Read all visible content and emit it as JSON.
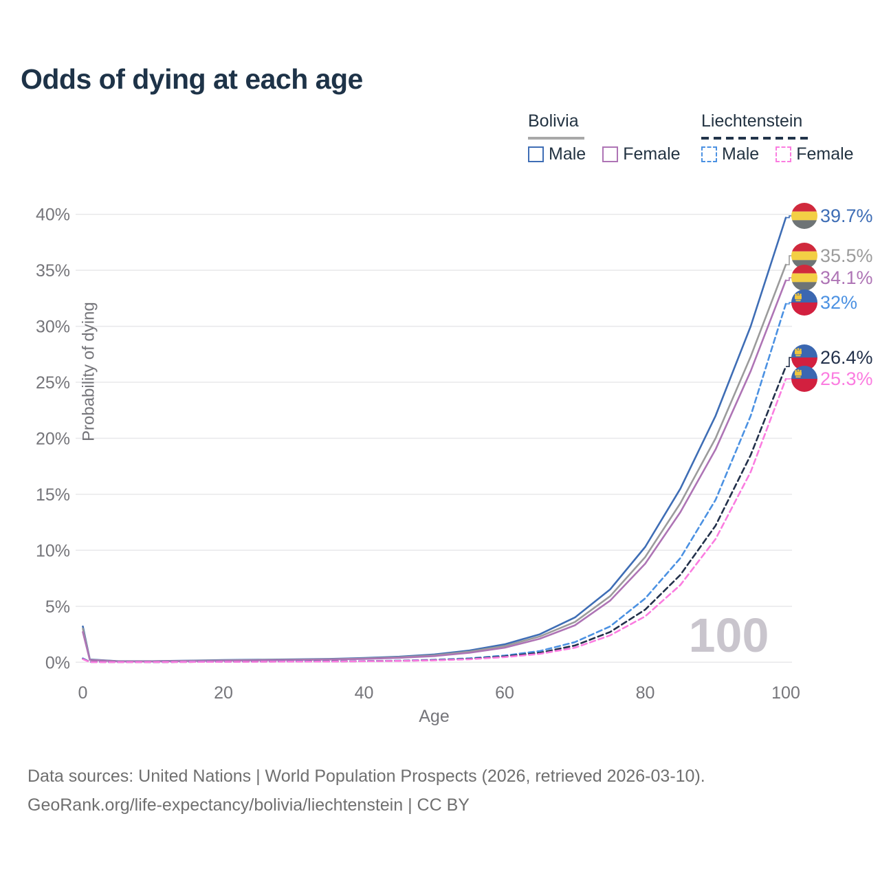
{
  "title": "Odds of dying at each age",
  "legend": {
    "groups": [
      {
        "label": "Bolivia",
        "line_style": "solid",
        "underline_color": "#a8a8a8",
        "items": [
          {
            "label": "Male",
            "color": "#3e6db5"
          },
          {
            "label": "Female",
            "color": "#ae74b5"
          }
        ]
      },
      {
        "label": "Liechtenstein",
        "line_style": "dashed",
        "underline_color": "#22344a",
        "items": [
          {
            "label": "Male",
            "color": "#4b91e2"
          },
          {
            "label": "Female",
            "color": "#fb7ce0"
          }
        ]
      }
    ]
  },
  "watermark": "100",
  "footer": {
    "line1": "Data sources: United Nations | World Population Prospects (2026, retrieved 2026-03-10).",
    "line2": "GeoRank.org/life-expectancy/bolivia/liechtenstein | CC BY"
  },
  "chart_data": {
    "type": "line",
    "title": "Odds of dying at each age",
    "xlabel": "Age",
    "ylabel": "Probability of dying",
    "xlim": [
      0,
      100
    ],
    "ylim": [
      0,
      40
    ],
    "x_ticks": [
      0,
      20,
      40,
      60,
      80,
      100
    ],
    "y_ticks": [
      0,
      5,
      10,
      15,
      20,
      25,
      30,
      35,
      40
    ],
    "y_tick_suffix": "%",
    "grid": "horizontal",
    "x": [
      0,
      1,
      5,
      10,
      15,
      20,
      25,
      30,
      35,
      40,
      45,
      50,
      55,
      60,
      65,
      70,
      75,
      80,
      85,
      90,
      95,
      100
    ],
    "series": [
      {
        "name": "Bolivia Male",
        "color": "#3e6db5",
        "dash": "solid",
        "flag": "bolivia",
        "end_label": "39.7%",
        "values": [
          3.2,
          0.25,
          0.1,
          0.1,
          0.15,
          0.2,
          0.23,
          0.26,
          0.3,
          0.38,
          0.5,
          0.7,
          1.05,
          1.6,
          2.5,
          4.0,
          6.5,
          10.3,
          15.5,
          22.0,
          30.0,
          39.7
        ]
      },
      {
        "name": "Bolivia Both sexes",
        "color": "#9b9b9b",
        "dash": "solid",
        "flag": "bolivia",
        "end_label": "35.5%",
        "values": [
          3.0,
          0.22,
          0.09,
          0.09,
          0.13,
          0.17,
          0.2,
          0.23,
          0.27,
          0.34,
          0.45,
          0.62,
          0.95,
          1.45,
          2.3,
          3.6,
          5.9,
          9.4,
          14.2,
          20.0,
          27.3,
          35.5
        ]
      },
      {
        "name": "Bolivia Female",
        "color": "#ae74b5",
        "dash": "solid",
        "flag": "bolivia",
        "end_label": "34.1%",
        "values": [
          2.7,
          0.2,
          0.08,
          0.08,
          0.11,
          0.14,
          0.17,
          0.2,
          0.24,
          0.3,
          0.4,
          0.55,
          0.85,
          1.3,
          2.1,
          3.3,
          5.5,
          8.8,
          13.4,
          19.0,
          26.0,
          34.1
        ]
      },
      {
        "name": "Liechtenstein Male",
        "color": "#4b91e2",
        "dash": "dashed",
        "flag": "liechtenstein",
        "end_label": "32%",
        "values": [
          0.35,
          0.03,
          0.02,
          0.02,
          0.04,
          0.06,
          0.07,
          0.08,
          0.09,
          0.11,
          0.15,
          0.22,
          0.35,
          0.6,
          1.0,
          1.8,
          3.2,
          5.7,
          9.3,
          14.5,
          22.0,
          32.0
        ]
      },
      {
        "name": "Liechtenstein Both sexes",
        "color": "#22304a",
        "dash": "dashed",
        "flag": "liechtenstein",
        "end_label": "26.4%",
        "values": [
          0.3,
          0.03,
          0.02,
          0.02,
          0.03,
          0.05,
          0.06,
          0.07,
          0.08,
          0.1,
          0.13,
          0.19,
          0.3,
          0.52,
          0.85,
          1.5,
          2.7,
          4.7,
          7.8,
          12.2,
          18.5,
          26.4
        ]
      },
      {
        "name": "Liechtenstein Female",
        "color": "#fb7ce0",
        "dash": "dashed",
        "flag": "liechtenstein",
        "end_label": "25.3%",
        "values": [
          0.28,
          0.02,
          0.01,
          0.02,
          0.03,
          0.04,
          0.05,
          0.06,
          0.07,
          0.09,
          0.12,
          0.17,
          0.27,
          0.46,
          0.75,
          1.3,
          2.4,
          4.1,
          6.9,
          11.0,
          17.0,
          25.3
        ]
      }
    ],
    "flag_colors": {
      "bolivia": {
        "top": "#d0293c",
        "middle": "#f3cf45",
        "bottom": "#6e7476"
      },
      "liechtenstein": {
        "top": "#3b67b1",
        "bottom": "#d2203f",
        "crown": "#f0c63f"
      }
    }
  }
}
